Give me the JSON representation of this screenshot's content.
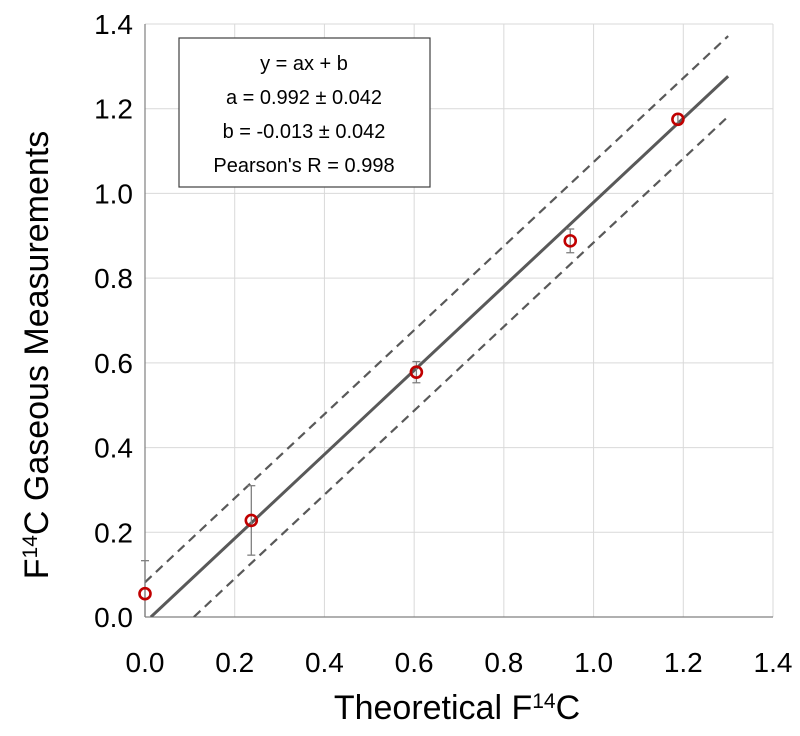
{
  "chart_data": {
    "type": "scatter",
    "title": "",
    "xlabel": {
      "prefix": "Theoretical F",
      "superscript": "14",
      "suffix": "C"
    },
    "ylabel": {
      "prefix": "F",
      "superscript": "14",
      "suffix": "C Gaseous Measurements"
    },
    "xlim": [
      0,
      1.4
    ],
    "ylim": [
      0,
      1.4
    ],
    "xticks": [
      "0.0",
      "0.2",
      "0.4",
      "0.6",
      "0.8",
      "1.0",
      "1.2",
      "1.4"
    ],
    "yticks": [
      "0.0",
      "0.2",
      "0.4",
      "0.6",
      "0.8",
      "1.0",
      "1.2",
      "1.4"
    ],
    "grid": true,
    "points": [
      {
        "x": 0.0,
        "y": 0.055,
        "err": 0.078
      },
      {
        "x": 0.237,
        "y": 0.228,
        "err": 0.082
      },
      {
        "x": 0.605,
        "y": 0.578,
        "err": 0.025
      },
      {
        "x": 0.948,
        "y": 0.888,
        "err": 0.028
      },
      {
        "x": 1.188,
        "y": 1.175,
        "err": 0.012
      }
    ],
    "fit": {
      "a": 0.992,
      "b": -0.013,
      "x_end": 1.3
    },
    "band_offset": 0.095,
    "annotation": [
      "y = ax + b",
      "a = 0.992 ± 0.042",
      "b = -0.013 ± 0.042",
      "Pearson's R = 0.998"
    ],
    "colors": {
      "marker": "#c00000",
      "fit_line": "#595959",
      "error_bar": "#7f7f7f",
      "grid": "#d9d9d9",
      "axis": "#808080"
    }
  }
}
